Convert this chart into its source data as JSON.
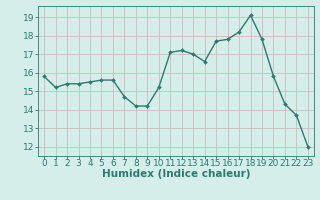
{
  "x": [
    0,
    1,
    2,
    3,
    4,
    5,
    6,
    7,
    8,
    9,
    10,
    11,
    12,
    13,
    14,
    15,
    16,
    17,
    18,
    19,
    20,
    21,
    22,
    23
  ],
  "y": [
    15.8,
    15.2,
    15.4,
    15.4,
    15.5,
    15.6,
    15.6,
    14.7,
    14.2,
    14.2,
    15.2,
    17.1,
    17.2,
    17.0,
    16.6,
    17.7,
    17.8,
    18.2,
    19.1,
    17.8,
    15.8,
    14.3,
    13.7,
    12.0
  ],
  "xlabel": "Humidex (Indice chaleur)",
  "ylim": [
    11.5,
    19.6
  ],
  "xlim": [
    -0.5,
    23.5
  ],
  "yticks": [
    12,
    13,
    14,
    15,
    16,
    17,
    18,
    19
  ],
  "xticks": [
    0,
    1,
    2,
    3,
    4,
    5,
    6,
    7,
    8,
    9,
    10,
    11,
    12,
    13,
    14,
    15,
    16,
    17,
    18,
    19,
    20,
    21,
    22,
    23
  ],
  "line_color": "#2d7b6e",
  "marker_color": "#2d7b6e",
  "bg_color": "#d5eeea",
  "grid_color": "#c8bebe",
  "axis_color": "#2d7b6e",
  "tick_color": "#2d7b6e",
  "label_color": "#2d7b6e",
  "xlabel_fontsize": 7.5,
  "tick_fontsize": 6.5
}
